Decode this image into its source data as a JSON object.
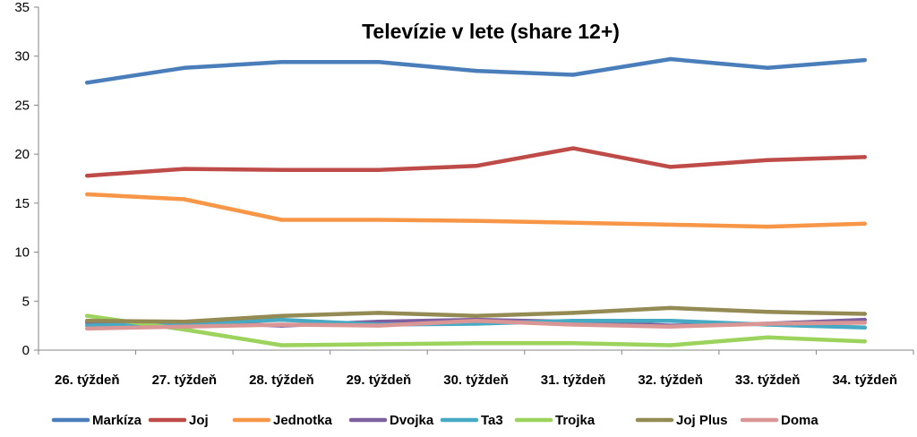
{
  "chart_data": {
    "type": "line",
    "title": "Televízie v lete (share 12+)",
    "xlabel": "",
    "ylabel": "",
    "ylim": [
      0,
      35
    ],
    "yticks": [
      0,
      5,
      10,
      15,
      20,
      25,
      30,
      35
    ],
    "grid": false,
    "legend_position": "bottom",
    "categories": [
      "26. týždeň",
      "27. týždeň",
      "28. týždeň",
      "29. týždeň",
      "30. týždeň",
      "31. týždeň",
      "32. týždeň",
      "33. týždeň",
      "34. týždeň"
    ],
    "series": [
      {
        "name": "Markíza",
        "color": "#4A7EBB",
        "values": [
          27.3,
          28.8,
          29.4,
          29.4,
          28.5,
          28.1,
          29.7,
          28.8,
          29.6
        ]
      },
      {
        "name": "Joj",
        "color": "#BE4B48",
        "values": [
          17.8,
          18.5,
          18.4,
          18.4,
          18.8,
          20.6,
          18.7,
          19.4,
          19.7
        ]
      },
      {
        "name": "Jednotka",
        "color": "#F79646",
        "values": [
          15.9,
          15.4,
          13.3,
          13.3,
          13.2,
          13.0,
          12.8,
          12.6,
          12.9
        ]
      },
      {
        "name": "Dvojka",
        "color": "#7D60A0",
        "values": [
          2.8,
          2.9,
          2.5,
          2.9,
          3.1,
          2.9,
          2.5,
          2.7,
          3.1
        ]
      },
      {
        "name": "Ta3",
        "color": "#46AAC5",
        "values": [
          2.5,
          2.7,
          3.1,
          2.6,
          2.7,
          3.0,
          3.0,
          2.6,
          2.3
        ]
      },
      {
        "name": "Trojka",
        "color": "#9BD35C",
        "values": [
          3.5,
          2.1,
          0.5,
          0.6,
          0.7,
          0.7,
          0.5,
          1.3,
          0.9
        ]
      },
      {
        "name": "Joj Plus",
        "color": "#948A54",
        "values": [
          3.0,
          2.9,
          3.5,
          3.8,
          3.5,
          3.8,
          4.3,
          3.9,
          3.7
        ]
      },
      {
        "name": "Doma",
        "color": "#D99694",
        "values": [
          2.2,
          2.4,
          2.6,
          2.5,
          3.0,
          2.6,
          2.4,
          2.7,
          2.8
        ]
      }
    ]
  }
}
